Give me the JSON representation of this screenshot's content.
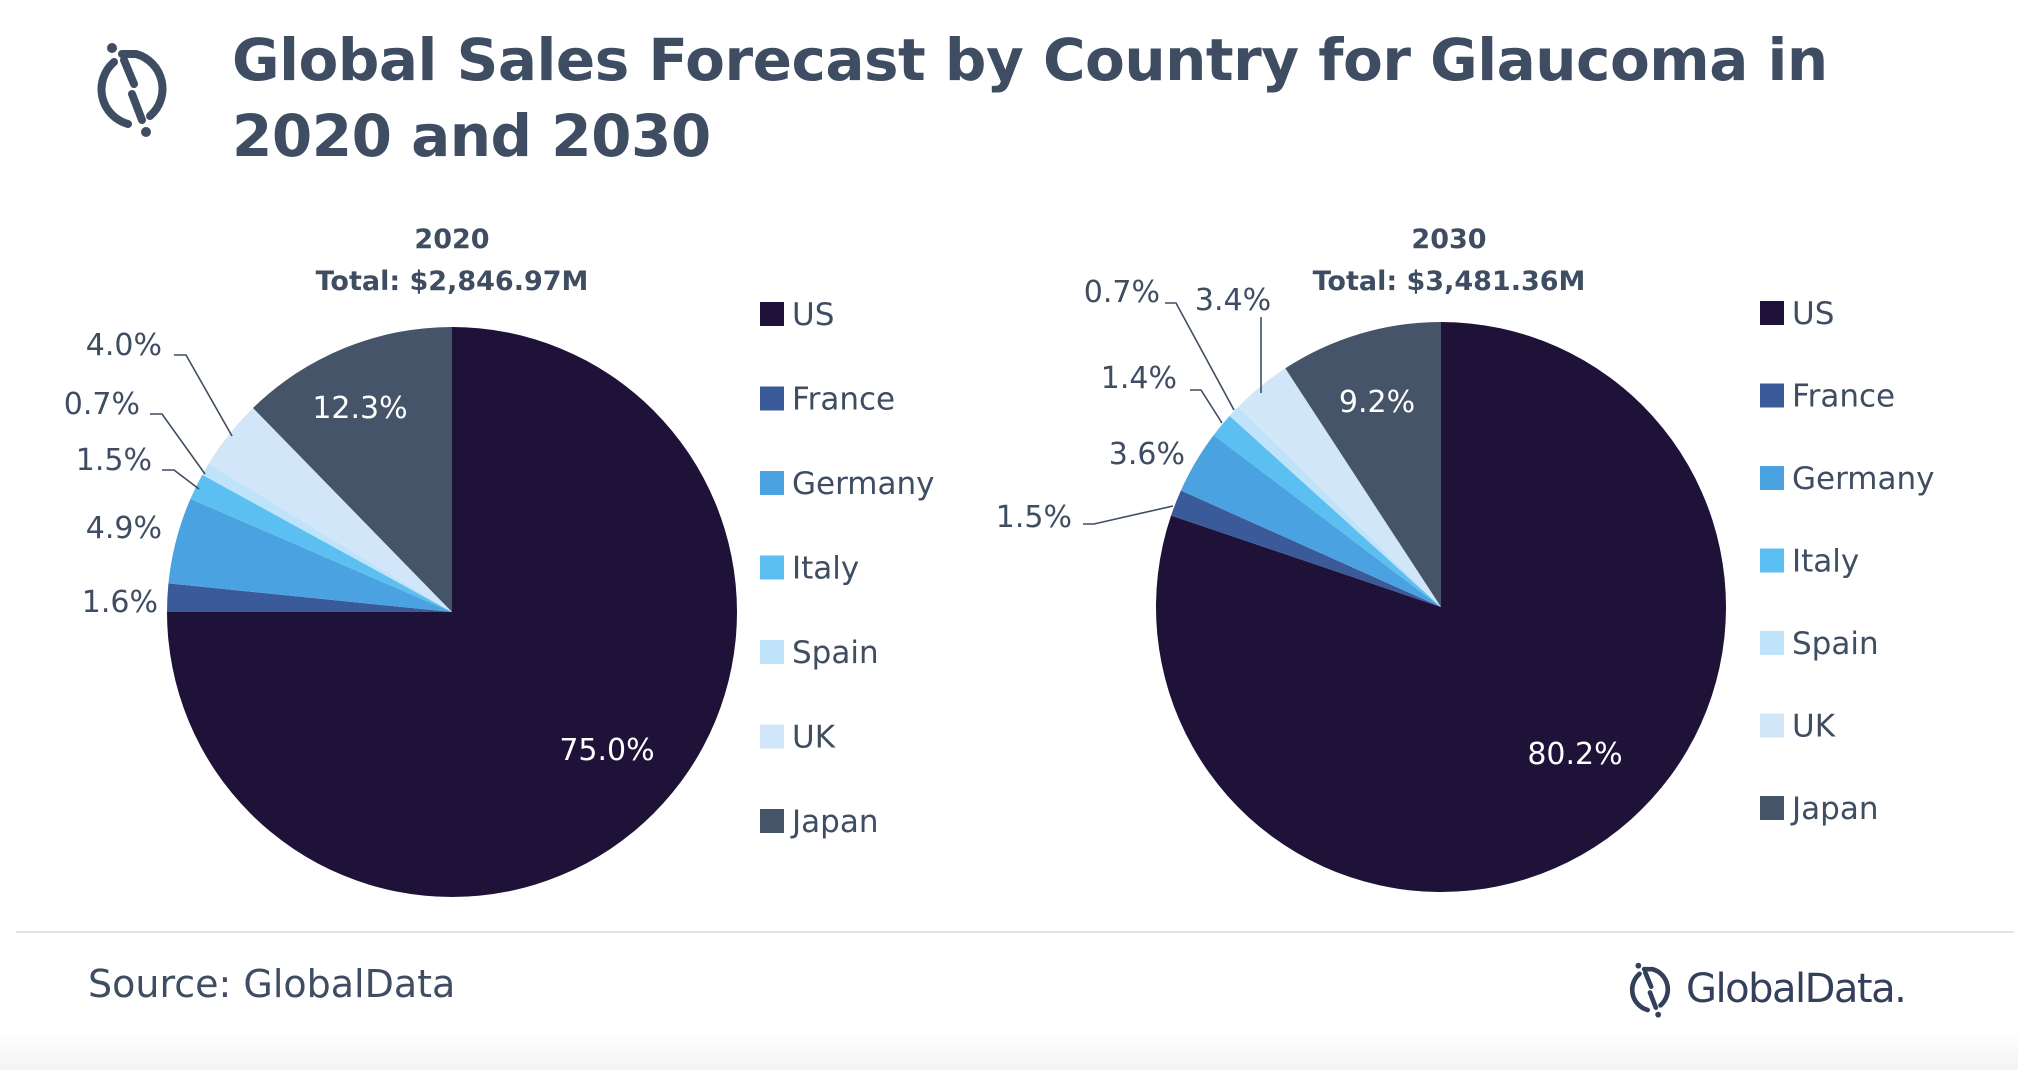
{
  "header": {
    "title_line1": "Global Sales Forecast by Country for Glaucoma in",
    "title_line2": "2020 and 2030",
    "logo_icon": "globaldata-logo-icon"
  },
  "footer": {
    "source": "Source:  GlobalData",
    "brand": "GlobalData."
  },
  "chart_data": [
    {
      "type": "pie",
      "title": "2020",
      "subtitle": "Total: $2,846.97M",
      "categories": [
        "US",
        "France",
        "Germany",
        "Italy",
        "Spain",
        "UK",
        "Japan"
      ],
      "values": [
        75.0,
        1.6,
        4.9,
        1.5,
        0.7,
        4.0,
        12.3
      ],
      "labels": [
        "75.0%",
        "1.6%",
        "4.9%",
        "1.5%",
        "0.7%",
        "4.0%",
        "12.3%"
      ],
      "unit": "%",
      "start_angle": "12 o'clock, clockwise",
      "legend": {
        "position": "right",
        "entries": [
          "US",
          "France",
          "Germany",
          "Italy",
          "Spain",
          "UK",
          "Japan"
        ]
      }
    },
    {
      "type": "pie",
      "title": "2030",
      "subtitle": "Total: $3,481.36M",
      "categories": [
        "US",
        "France",
        "Germany",
        "Italy",
        "Spain",
        "UK",
        "Japan"
      ],
      "values": [
        80.2,
        1.5,
        3.6,
        1.4,
        0.7,
        3.4,
        9.2
      ],
      "labels": [
        "80.2%",
        "1.5%",
        "3.6%",
        "1.4%",
        "0.7%",
        "3.4%",
        "9.2%"
      ],
      "unit": "%",
      "start_angle": "12 o'clock, clockwise",
      "legend": {
        "position": "right",
        "entries": [
          "US",
          "France",
          "Germany",
          "Italy",
          "Spain",
          "UK",
          "Japan"
        ]
      }
    }
  ],
  "colors": {
    "US": "#1e1238",
    "France": "#3a5a9a",
    "Germany": "#4aa3e0",
    "Italy": "#5bbff2",
    "Spain": "#bfe4fa",
    "UK": "#d2e6fa",
    "Japan": "#455468",
    "text": "#3f4d63"
  }
}
